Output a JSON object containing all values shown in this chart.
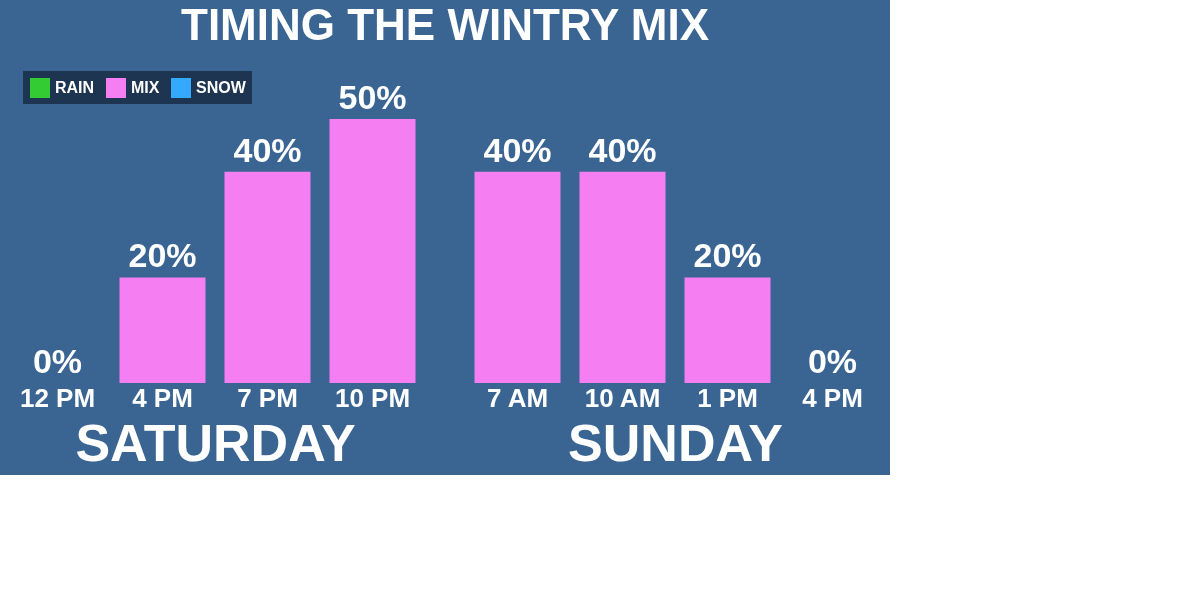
{
  "chart_data": [
    {
      "type": "bar",
      "title": "TIMING THE WINTRY MIX",
      "xlabel": "SATURDAY",
      "legend": "top left",
      "categories": [
        "12 PM",
        "4 PM",
        "7 PM",
        "10 PM"
      ],
      "series": [
        {
          "name": "RAIN",
          "color": "#33cc33",
          "values": [
            null,
            null,
            null,
            null
          ]
        },
        {
          "name": "MIX",
          "color": "#f57ff2",
          "values": [
            0,
            20,
            40,
            50
          ],
          "value_labels": [
            "0%",
            "20%",
            "40%",
            "50%"
          ]
        },
        {
          "name": "SNOW",
          "color": "#33aaff",
          "values": [
            null,
            null,
            null,
            null
          ]
        }
      ]
    },
    {
      "type": "bar",
      "xlabel": "SUNDAY",
      "categories": [
        "7 AM",
        "10 AM",
        "1 PM",
        "4 PM"
      ],
      "series": [
        {
          "color": "#f57ff2",
          "values": [
            40,
            40,
            20,
            0
          ],
          "value_labels": [
            "40%",
            "40%",
            "20%",
            "0%"
          ]
        }
      ]
    }
  ]
}
